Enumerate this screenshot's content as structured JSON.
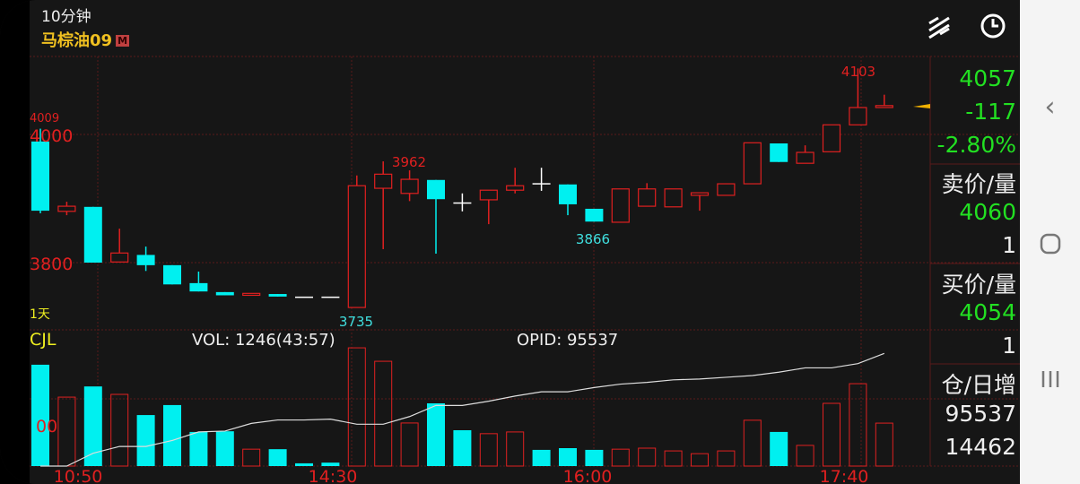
{
  "header": {
    "period": "10分钟",
    "symbol": "马棕油09",
    "badge": "M",
    "icons": [
      "drawing-tool-icon",
      "clock-icon"
    ]
  },
  "price_axis": {
    "labels": [
      {
        "value": 4000,
        "text": "4000"
      },
      {
        "value": 3800,
        "text": "3800"
      }
    ],
    "overlap_label": "4009"
  },
  "annotations": {
    "high": "4103",
    "low": "3735",
    "local_high": "3962",
    "local_low": "3866",
    "range": "1天"
  },
  "volume_pane": {
    "name": "CJL",
    "vol_label": "VOL: 1246(43:57)",
    "opid_label": "OPID: 95537",
    "axis_label": "00"
  },
  "time_labels": [
    "10:50",
    "14:30",
    "16:00",
    "17:40"
  ],
  "quote": {
    "last": "4057",
    "change": "-117",
    "change_pct": "-2.80%",
    "ask_label": "卖价/量",
    "ask_price": "4060",
    "ask_qty": "1",
    "bid_label": "买价/量",
    "bid_price": "4054",
    "bid_qty": "1",
    "oi_label": "仓/日增",
    "oi": "95537",
    "oi_change": "14462"
  },
  "colors": {
    "up": "#e02020",
    "down": "#00f0f0",
    "doji": "#ffffff",
    "quote_green": "#22e022",
    "symbol": "#f0c020",
    "grid": "#5a1a1a"
  },
  "chart_data": {
    "type": "candlestick",
    "ylim": [
      3700,
      4140
    ],
    "candles": [
      [
        3989,
        3881,
        4009,
        3877
      ],
      [
        3880,
        3888,
        3895,
        3874
      ],
      [
        3887,
        3800,
        3887,
        3800
      ],
      [
        3801,
        3815,
        3853,
        3801
      ],
      [
        3812,
        3796,
        3825,
        3787
      ],
      [
        3796,
        3766,
        3796,
        3766
      ],
      [
        3768,
        3755,
        3786,
        3755
      ],
      [
        3754,
        3749,
        3754,
        3749
      ],
      [
        3749,
        3752,
        3752,
        3749
      ],
      [
        3751,
        3747,
        3751,
        3747
      ],
      [
        3747,
        3747,
        3747,
        3747
      ],
      [
        3747,
        3747,
        3747,
        3747
      ],
      [
        3730,
        3920,
        3936,
        3735
      ],
      [
        3916,
        3938,
        3958,
        3821
      ],
      [
        3908,
        3930,
        3944,
        3896
      ],
      [
        3929,
        3899,
        3929,
        3814
      ],
      [
        3894,
        3894,
        3908,
        3880
      ],
      [
        3898,
        3913,
        3913,
        3860
      ],
      [
        3913,
        3920,
        3948,
        3908
      ],
      [
        3924,
        3924,
        3948,
        3912
      ],
      [
        3922,
        3891,
        3922,
        3874
      ],
      [
        3884,
        3864,
        3884,
        3864
      ],
      [
        3863,
        3915,
        3915,
        3863
      ],
      [
        3888,
        3915,
        3924,
        3888
      ],
      [
        3887,
        3915,
        3915,
        3887
      ],
      [
        3905,
        3909,
        3909,
        3881
      ],
      [
        3905,
        3923,
        3923,
        3905
      ],
      [
        3923,
        3987,
        3987,
        3923
      ],
      [
        3986,
        3957,
        3986,
        3957
      ],
      [
        3955,
        3972,
        3983,
        3955
      ],
      [
        3973,
        4015,
        4015,
        3973
      ],
      [
        4015,
        4042,
        4103,
        4015
      ],
      [
        4042,
        4045,
        4062,
        4042
      ]
    ],
    "volume": [
      2940,
      2000,
      2310,
      2080,
      1480,
      1770,
      990,
      1010,
      490,
      490,
      80,
      100,
      3430,
      3040,
      1250,
      1820,
      1040,
      940,
      990,
      470,
      520,
      470,
      490,
      520,
      440,
      360,
      440,
      1330,
      990,
      600,
      1820,
      2390,
      1246
    ],
    "volume_max": 3770,
    "opid": [
      90257,
      90257,
      90857,
      91177,
      91177,
      91457,
      91857,
      91897,
      92257,
      92417,
      92417,
      92457,
      92217,
      92217,
      92577,
      93097,
      93097,
      93297,
      93537,
      93737,
      93737,
      93937,
      94097,
      94177,
      94297,
      94337,
      94417,
      94497,
      94657,
      94857,
      94857,
      95057,
      95537
    ],
    "opid_range": [
      90257,
      95800
    ]
  }
}
